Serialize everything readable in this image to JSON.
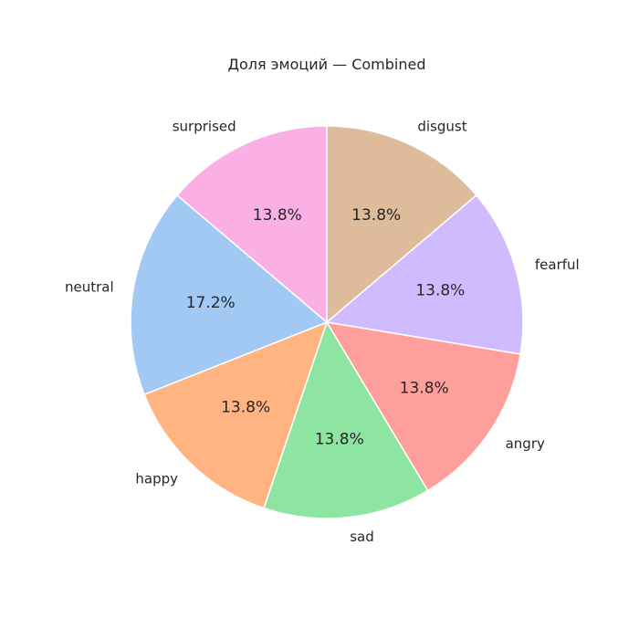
{
  "chart_data": {
    "type": "pie",
    "title": "Доля эмоций — Combined",
    "labels": [
      "disgust",
      "fearful",
      "angry",
      "sad",
      "happy",
      "neutral",
      "surprised"
    ],
    "values": [
      13.8,
      13.8,
      13.8,
      13.8,
      13.8,
      17.2,
      13.8
    ],
    "value_labels": [
      "13.8%",
      "13.8%",
      "13.8%",
      "13.8%",
      "13.8%",
      "17.2%",
      "13.8%"
    ],
    "colors": [
      "#debb9b",
      "#d0bbff",
      "#ff9f9b",
      "#8de5a1",
      "#ffb482",
      "#a1c9f4",
      "#fab0e4"
    ],
    "start_angle_deg": 90,
    "direction": "clockwise"
  }
}
